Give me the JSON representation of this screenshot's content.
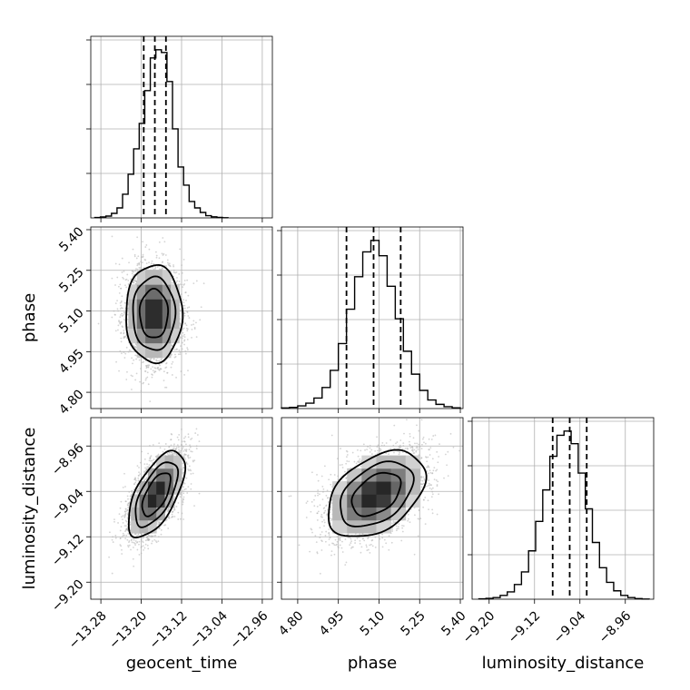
{
  "chart_data": {
    "type": "corner",
    "parameters": [
      {
        "name": "geocent_time",
        "label": "geocent_time",
        "range": [
          -13.3,
          -12.94
        ],
        "ticks": [
          -13.28,
          -13.2,
          -13.12,
          -13.04,
          -12.96
        ],
        "tick_labels": [
          "−13.28",
          "−13.20",
          "−13.12",
          "−13.04",
          "−12.96"
        ],
        "quantiles": [
          -13.195,
          -13.173,
          -13.151
        ],
        "histogram": {
          "bin_edges": [
            -13.292,
            -13.281,
            -13.27,
            -13.259,
            -13.248,
            -13.237,
            -13.226,
            -13.215,
            -13.204,
            -13.193,
            -13.182,
            -13.171,
            -13.16,
            -13.149,
            -13.138,
            -13.127,
            -13.116,
            -13.105,
            -13.094,
            -13.083,
            -13.072,
            -13.061,
            -13.05,
            -13.039,
            -13.028
          ],
          "counts": [
            2,
            5,
            10,
            25,
            55,
            130,
            240,
            380,
            520,
            700,
            880,
            925,
            910,
            750,
            490,
            280,
            180,
            90,
            55,
            30,
            12,
            6,
            3,
            1
          ]
        }
      },
      {
        "name": "phase",
        "label": "phase",
        "range": [
          4.74,
          5.41
        ],
        "ticks": [
          4.8,
          4.95,
          5.1,
          5.25,
          5.4
        ],
        "tick_labels": [
          "4.80",
          "4.95",
          "5.10",
          "5.25",
          "5.40"
        ],
        "quantiles": [
          4.98,
          5.08,
          5.18
        ],
        "histogram": {
          "bin_edges": [
            4.74,
            4.77,
            4.8,
            4.83,
            4.86,
            4.89,
            4.92,
            4.95,
            4.98,
            5.01,
            5.04,
            5.07,
            5.1,
            5.13,
            5.16,
            5.19,
            5.22,
            5.25,
            5.28,
            5.31,
            5.34,
            5.37,
            5.4
          ],
          "counts": [
            3,
            6,
            14,
            28,
            55,
            110,
            200,
            340,
            520,
            690,
            820,
            880,
            800,
            640,
            470,
            300,
            180,
            95,
            45,
            22,
            10,
            4
          ]
        }
      },
      {
        "name": "luminosity_distance",
        "label": "luminosity_distance",
        "range": [
          -9.23,
          -8.91
        ],
        "ticks": [
          -9.2,
          -9.12,
          -9.04,
          -8.96
        ],
        "tick_labels": [
          "−9.20",
          "−9.12",
          "−9.04",
          "−8.96"
        ],
        "quantiles": [
          -9.088,
          -9.058,
          -9.028
        ],
        "histogram": {
          "bin_edges": [
            -9.218,
            -9.2055,
            -9.193,
            -9.1805,
            -9.168,
            -9.1555,
            -9.143,
            -9.1305,
            -9.118,
            -9.1055,
            -9.093,
            -9.0805,
            -9.068,
            -9.0555,
            -9.043,
            -9.0305,
            -9.018,
            -9.0055,
            -8.993,
            -8.9805,
            -8.968,
            -8.9555,
            -8.943,
            -8.9305,
            -8.918
          ],
          "counts": [
            2,
            4,
            8,
            18,
            35,
            70,
            130,
            230,
            370,
            520,
            680,
            780,
            800,
            740,
            600,
            430,
            270,
            150,
            80,
            40,
            18,
            8,
            3,
            1
          ]
        }
      }
    ],
    "pairs": [
      {
        "x": "geocent_time",
        "y": "phase",
        "mean": [
          -13.175,
          5.09
        ],
        "sd": [
          0.028,
          0.09
        ],
        "rho": 0.0,
        "n_points": 3000
      },
      {
        "x": "geocent_time",
        "y": "luminosity_distance",
        "mean": [
          -13.17,
          -9.045
        ],
        "sd": [
          0.028,
          0.038
        ],
        "rho": 0.62,
        "n_points": 3000
      },
      {
        "x": "phase",
        "y": "luminosity_distance",
        "mean": [
          5.09,
          -9.045
        ],
        "sd": [
          0.09,
          0.038
        ],
        "rho": 0.42,
        "n_points": 3000
      }
    ],
    "contour_levels_sigma": [
      1.0,
      1.5,
      2.0
    ],
    "grid": true,
    "colors": {
      "line": "#000000",
      "points": "#b0b0b0",
      "grid": "#b0b0b0",
      "frame": "#000000"
    }
  }
}
